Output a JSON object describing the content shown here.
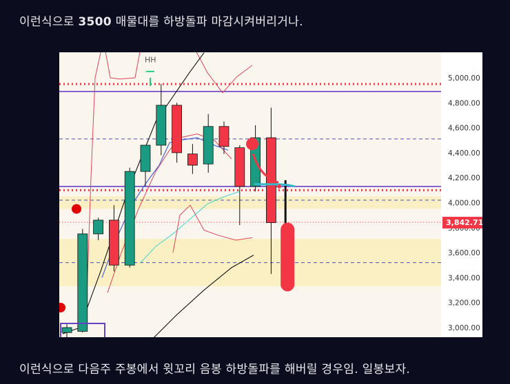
{
  "captions": {
    "top_prefix": "이런식으로 ",
    "top_bold": "3500",
    "top_suffix": " 매물대를 하방돌파 마감시켜버리거나.",
    "bottom": "이런식으로 다음주 주봉에서 윗꼬리 음봉 하방돌파를 해버릴 경우임. 일봉보자."
  },
  "colors": {
    "up": "#1a9b82",
    "down": "#f23645",
    "level_line": "#6a3fc8",
    "zone": "#fbf0c4",
    "chart_bg": "#faf6ee",
    "price_badge": "#f23645"
  },
  "chart_data": {
    "type": "candlestick",
    "y_axis": {
      "min": 2900,
      "max": 5200,
      "ticks": [
        "3,000.00",
        "3,200.00",
        "3,400.00",
        "3,600.00",
        "3,800.00",
        "4,000.00",
        "4,200.00",
        "4,400.00",
        "4,600.00",
        "4,800.00",
        "5,000.00"
      ],
      "tick_values": [
        3000,
        3200,
        3400,
        3600,
        3800,
        4000,
        4200,
        4400,
        4600,
        4800,
        5000
      ]
    },
    "current_price_label": "3,842.71",
    "current_price": 3842.71,
    "annotation": "HH",
    "candles": [
      {
        "o": 2960,
        "h": 3030,
        "l": 2900,
        "c": 3000
      },
      {
        "o": 2970,
        "h": 3790,
        "l": 2960,
        "c": 3750
      },
      {
        "o": 3750,
        "h": 3880,
        "l": 3700,
        "c": 3860
      },
      {
        "o": 3860,
        "h": 3980,
        "l": 3450,
        "c": 3500
      },
      {
        "o": 3500,
        "h": 4280,
        "l": 3480,
        "c": 4250
      },
      {
        "o": 4250,
        "h": 4450,
        "l": 4130,
        "c": 4460
      },
      {
        "o": 4460,
        "h": 4950,
        "l": 4380,
        "c": 4780
      },
      {
        "o": 4780,
        "h": 4800,
        "l": 4320,
        "c": 4400
      },
      {
        "o": 4390,
        "h": 4470,
        "l": 4230,
        "c": 4300
      },
      {
        "o": 4310,
        "h": 4710,
        "l": 4240,
        "c": 4610
      },
      {
        "o": 4610,
        "h": 4650,
        "l": 4390,
        "c": 4450
      },
      {
        "o": 4440,
        "h": 4460,
        "l": 3820,
        "c": 4130
      },
      {
        "o": 4130,
        "h": 4620,
        "l": 4090,
        "c": 4520
      },
      {
        "o": 4520,
        "h": 4760,
        "l": 3430,
        "c": 3840
      }
    ],
    "projection": {
      "o": 3840,
      "h": 4180,
      "l": 3280,
      "c": 3290
    },
    "levels": {
      "solid": [
        4890,
        4130
      ],
      "dotted_red": [
        4950,
        4100
      ],
      "dashed_blue": [
        4510,
        4020,
        3520
      ],
      "dotted_red_price": [
        3842.71
      ]
    },
    "zones": [
      [
        3950,
        4050
      ],
      [
        3330,
        3710
      ]
    ]
  }
}
